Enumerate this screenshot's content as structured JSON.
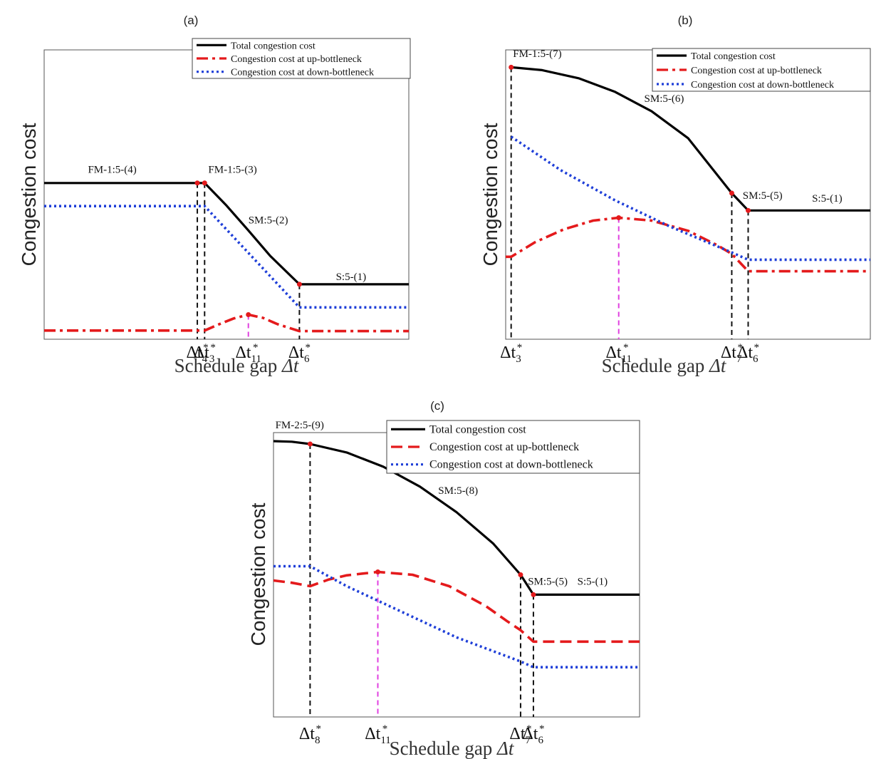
{
  "chart_data": [
    {
      "type": "line",
      "panel_label": "(a)",
      "xlabel_text": "Schedule gap ",
      "xlabel_symbol": "Δt",
      "ylabel": "Congestion cost",
      "legend": {
        "placement": "top-right",
        "entries": [
          "Total congestion cost",
          "Congestion cost at up-bottleneck",
          "Congestion cost at down-bottleneck"
        ]
      },
      "colors": {
        "total": "#000000",
        "up": "#e41a1c",
        "down": "#1f3fd8",
        "marker": "#e41a1c",
        "peak": "#e040e0"
      },
      "xlim": [
        0,
        10
      ],
      "ylim": [
        0,
        10
      ],
      "vlines": [
        {
          "x": 4.2,
          "label_base": "Δt",
          "label_sub": "4",
          "label_sup": "*",
          "y_to": 5.4,
          "style": "black"
        },
        {
          "x": 4.4,
          "label_base": "Δt",
          "label_sub": "3",
          "label_sup": "*",
          "y_to": 5.4,
          "style": "black"
        },
        {
          "x": 5.6,
          "label_base": "Δt",
          "label_sub": "11",
          "label_sup": "*",
          "y_to": 0.85,
          "style": "magenta"
        },
        {
          "x": 7.0,
          "label_base": "Δt",
          "label_sub": "6",
          "label_sup": "*",
          "y_to": 1.9,
          "style": "black"
        }
      ],
      "series": [
        {
          "key": "total",
          "name": "Total congestion cost",
          "style": "solid",
          "x": [
            0,
            4.2,
            4.4,
            5.0,
            5.6,
            6.2,
            7.0,
            10
          ],
          "y": [
            5.4,
            5.4,
            5.4,
            4.62,
            3.76,
            2.88,
            1.9,
            1.9
          ]
        },
        {
          "key": "up",
          "name": "Congestion cost at up-bottleneck",
          "style": "dashdot",
          "x": [
            0,
            4.4,
            4.8,
            5.2,
            5.6,
            6.0,
            6.4,
            7.0,
            10
          ],
          "y": [
            0.3,
            0.3,
            0.52,
            0.72,
            0.85,
            0.74,
            0.52,
            0.28,
            0.28
          ]
        },
        {
          "key": "down",
          "name": "Congestion cost at down-bottleneck",
          "style": "dotted",
          "x": [
            0,
            4.4,
            7.0,
            10
          ],
          "y": [
            4.6,
            4.6,
            1.1,
            1.1
          ]
        }
      ],
      "markers": [
        {
          "x": 4.2,
          "y": 5.4
        },
        {
          "x": 4.4,
          "y": 5.4
        },
        {
          "x": 7.0,
          "y": 1.9
        },
        {
          "x": 5.6,
          "y": 0.85
        }
      ],
      "annotations": [
        {
          "text": "FM-1:5-(4)",
          "x": 1.2,
          "y": 5.75
        },
        {
          "text": "FM-1:5-(3)",
          "x": 4.5,
          "y": 5.75
        },
        {
          "text": "SM:5-(2)",
          "x": 5.6,
          "y": 4.0
        },
        {
          "text": "S:5-(1)",
          "x": 8.0,
          "y": 2.05
        }
      ]
    },
    {
      "type": "line",
      "panel_label": "(b)",
      "xlabel_text": "Schedule gap ",
      "xlabel_symbol": "Δt",
      "ylabel": "Congestion cost",
      "legend": {
        "placement": "top-right",
        "entries": [
          "Total congestion cost",
          "Congestion cost at up-bottleneck",
          "Congestion cost at down-bottleneck"
        ]
      },
      "colors": {
        "total": "#000000",
        "up": "#e41a1c",
        "down": "#1f3fd8",
        "marker": "#e41a1c",
        "peak": "#e040e0"
      },
      "xlim": [
        0,
        10
      ],
      "ylim": [
        0,
        10
      ],
      "vlines": [
        {
          "x": 0.15,
          "label_base": "Δt",
          "label_sub": "3",
          "label_sup": "*",
          "y_to": 9.4,
          "style": "black"
        },
        {
          "x": 3.1,
          "label_base": "Δt",
          "label_sub": "11",
          "label_sup": "*",
          "y_to": 4.2,
          "style": "magenta"
        },
        {
          "x": 6.2,
          "label_base": "Δt",
          "label_sub": "7",
          "label_sup": "*",
          "y_to": 5.05,
          "style": "black"
        },
        {
          "x": 6.65,
          "label_base": "Δt",
          "label_sub": "6",
          "label_sup": "*",
          "y_to": 4.45,
          "style": "black"
        }
      ],
      "series": [
        {
          "key": "total",
          "name": "Total congestion cost",
          "style": "solid",
          "x": [
            0.15,
            1.0,
            2.0,
            3.0,
            4.0,
            5.0,
            6.2,
            6.65,
            10
          ],
          "y": [
            9.4,
            9.3,
            9.02,
            8.55,
            7.88,
            6.95,
            5.05,
            4.45,
            4.45
          ]
        },
        {
          "key": "up",
          "name": "Congestion cost at up-bottleneck",
          "style": "dashdot",
          "x": [
            0,
            0.15,
            0.8,
            1.6,
            2.4,
            3.1,
            4.0,
            5.0,
            5.8,
            6.2,
            6.65,
            10
          ],
          "y": [
            2.85,
            2.85,
            3.35,
            3.8,
            4.1,
            4.2,
            4.1,
            3.75,
            3.25,
            2.95,
            2.35,
            2.35
          ]
        },
        {
          "key": "down",
          "name": "Congestion cost at down-bottleneck",
          "style": "dotted",
          "x": [
            0.15,
            1.5,
            3.0,
            4.5,
            6.2,
            6.65,
            10
          ],
          "y": [
            7.0,
            5.85,
            4.8,
            3.9,
            3.0,
            2.75,
            2.75
          ]
        }
      ],
      "markers": [
        {
          "x": 0.15,
          "y": 9.4
        },
        {
          "x": 3.1,
          "y": 4.2
        },
        {
          "x": 6.2,
          "y": 5.05
        },
        {
          "x": 6.65,
          "y": 4.45
        }
      ],
      "annotations": [
        {
          "text": "FM-1:5-(7)",
          "x": 0.2,
          "y": 9.75
        },
        {
          "text": "SM:5-(6)",
          "x": 3.8,
          "y": 8.2
        },
        {
          "text": "SM:5-(5)",
          "x": 6.5,
          "y": 4.85
        },
        {
          "text": "S:5-(1)",
          "x": 8.4,
          "y": 4.75
        }
      ]
    },
    {
      "type": "line",
      "panel_label": "(c)",
      "xlabel_text": "Schedule gap ",
      "xlabel_symbol": "Δt",
      "ylabel": "Congestion cost",
      "legend": {
        "placement": "top-right",
        "entries": [
          "Total congestion cost",
          "Congestion cost at up-bottleneck",
          "Congestion cost at down-bottleneck"
        ]
      },
      "colors": {
        "total": "#000000",
        "up": "#e41a1c",
        "down": "#1f3fd8",
        "marker": "#e41a1c",
        "peak": "#e040e0"
      },
      "xlim": [
        0,
        10
      ],
      "ylim": [
        0,
        10
      ],
      "vlines": [
        {
          "x": 1.0,
          "label_base": "Δt",
          "label_sub": "8",
          "label_sup": "*",
          "y_to": 9.6,
          "style": "black"
        },
        {
          "x": 2.85,
          "label_base": "Δt",
          "label_sub": "11",
          "label_sup": "*",
          "y_to": 5.1,
          "style": "magenta"
        },
        {
          "x": 6.75,
          "label_base": "Δt",
          "label_sub": "7",
          "label_sup": "*",
          "y_to": 5.0,
          "style": "black"
        },
        {
          "x": 7.1,
          "label_base": "Δt",
          "label_sub": "6",
          "label_sup": "*",
          "y_to": 4.3,
          "style": "black"
        }
      ],
      "series": [
        {
          "key": "total",
          "name": "Total congestion cost",
          "style": "solid",
          "x": [
            0,
            0.5,
            1.0,
            2.0,
            3.0,
            4.0,
            5.0,
            6.0,
            6.75,
            7.1,
            10
          ],
          "y": [
            9.7,
            9.68,
            9.6,
            9.3,
            8.8,
            8.1,
            7.2,
            6.1,
            5.0,
            4.3,
            4.3
          ]
        },
        {
          "key": "up",
          "name": "Congestion cost at up-bottleneck",
          "style": "dashed",
          "x": [
            0,
            0.5,
            1.0,
            1.5,
            2.0,
            2.85,
            3.8,
            4.8,
            5.8,
            6.4,
            6.75,
            7.1,
            10
          ],
          "y": [
            4.8,
            4.72,
            4.6,
            4.83,
            4.98,
            5.1,
            5.0,
            4.6,
            3.9,
            3.35,
            3.05,
            2.65,
            2.65
          ]
        },
        {
          "key": "down",
          "name": "Congestion cost at down-bottleneck",
          "style": "dotted",
          "x": [
            0,
            1.0,
            2.0,
            3.5,
            5.0,
            6.75,
            7.1,
            10
          ],
          "y": [
            5.3,
            5.3,
            4.6,
            3.7,
            2.8,
            1.95,
            1.75,
            1.75
          ]
        }
      ],
      "markers": [
        {
          "x": 1.0,
          "y": 9.6
        },
        {
          "x": 2.85,
          "y": 5.1
        },
        {
          "x": 6.75,
          "y": 5.0
        },
        {
          "x": 7.1,
          "y": 4.3
        }
      ],
      "annotations": [
        {
          "text": "FM-2:5-(9)",
          "x": 0.05,
          "y": 10.15
        },
        {
          "text": "SM:5-(8)",
          "x": 4.5,
          "y": 7.85
        },
        {
          "text": "SM:5-(5)",
          "x": 6.95,
          "y": 4.65
        },
        {
          "text": "S:5-(1)",
          "x": 8.3,
          "y": 4.65
        }
      ]
    }
  ]
}
